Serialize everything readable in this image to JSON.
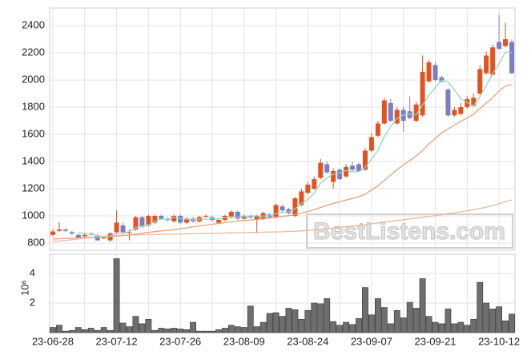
{
  "chart_data": [
    {
      "type": "candlestick",
      "up_color": "#e2531f",
      "down_color": "#7a7fc2",
      "ylim": [
        747,
        2530
      ],
      "yticks": [
        800,
        1000,
        1200,
        1400,
        1600,
        1800,
        2000,
        2200,
        2400
      ],
      "grid": true,
      "watermark": "BestListens.com",
      "open": [
        860,
        890,
        900,
        880,
        860,
        850,
        865,
        855,
        835,
        820,
        880,
        930,
        875,
        900,
        990,
        930,
        950,
        1000,
        975,
        960,
        1000,
        950,
        980,
        960,
        995,
        990,
        950,
        970,
        990,
        1030,
        980,
        1000,
        970,
        980,
        1010,
        990,
        1070,
        1050,
        1000,
        1080,
        1170,
        1200,
        1280,
        1380,
        1250,
        1340,
        1290,
        1370,
        1380,
        1340,
        1480,
        1590,
        1680,
        1830,
        1680,
        1780,
        1770,
        1700,
        1740,
        1990,
        2110,
        2020,
        1930,
        1740,
        1750,
        1800,
        1810,
        1900,
        2050,
        2040,
        2280,
        2250,
        2280
      ],
      "high": [
        900,
        955,
        910,
        890,
        870,
        870,
        880,
        865,
        850,
        880,
        1040,
        950,
        900,
        1000,
        1000,
        1010,
        1010,
        1010,
        990,
        1010,
        1010,
        990,
        990,
        1000,
        1010,
        1000,
        980,
        1010,
        1040,
        1040,
        1010,
        1010,
        1010,
        1030,
        1020,
        1090,
        1080,
        1060,
        1140,
        1200,
        1250,
        1290,
        1420,
        1400,
        1350,
        1350,
        1380,
        1400,
        1390,
        1500,
        1610,
        1700,
        1870,
        1860,
        1800,
        1800,
        1880,
        1840,
        2180,
        2150,
        2130,
        2030,
        1940,
        1800,
        1830,
        1880,
        1900,
        2110,
        2210,
        2260,
        2480,
        2420,
        2300
      ],
      "low": [
        850,
        880,
        880,
        860,
        830,
        840,
        855,
        815,
        830,
        810,
        870,
        870,
        820,
        890,
        910,
        920,
        940,
        970,
        960,
        950,
        940,
        940,
        950,
        950,
        985,
        960,
        940,
        960,
        980,
        970,
        970,
        980,
        870,
        970,
        980,
        980,
        1030,
        1010,
        990,
        1070,
        1160,
        1190,
        1270,
        1310,
        1200,
        1260,
        1280,
        1330,
        1320,
        1330,
        1470,
        1580,
        1670,
        1690,
        1670,
        1620,
        1710,
        1690,
        1730,
        1980,
        1990,
        1980,
        1730,
        1730,
        1740,
        1790,
        1800,
        1890,
        2040,
        2030,
        2220,
        2240,
        2040
      ],
      "close": [
        885,
        900,
        890,
        870,
        840,
        860,
        870,
        820,
        840,
        870,
        950,
        880,
        880,
        990,
        920,
        1000,
        1000,
        980,
        970,
        1000,
        950,
        980,
        960,
        990,
        1000,
        970,
        970,
        1000,
        1030,
        980,
        1000,
        990,
        1000,
        1020,
        990,
        1080,
        1040,
        1020,
        1130,
        1180,
        1230,
        1270,
        1390,
        1320,
        1330,
        1270,
        1360,
        1340,
        1330,
        1480,
        1580,
        1680,
        1850,
        1700,
        1780,
        1700,
        1720,
        1820,
        2060,
        2130,
        2000,
        1990,
        1740,
        1780,
        1800,
        1860,
        1870,
        2080,
        2180,
        2240,
        2230,
        2300,
        2050
      ],
      "series": [
        {
          "color": "#e9bb9f",
          "values": [
            812,
            816,
            820,
            825,
            830,
            835,
            840,
            845,
            848,
            851,
            854,
            856,
            858,
            860,
            861,
            862,
            863,
            864,
            865,
            866,
            867,
            868,
            869,
            870,
            871,
            872,
            873,
            874,
            875,
            876,
            877,
            878,
            879,
            880,
            881,
            882,
            883,
            885,
            887,
            890,
            893,
            897,
            901,
            906,
            911,
            916,
            921,
            926,
            931,
            936,
            942,
            948,
            954,
            960,
            966,
            972,
            978,
            984,
            990,
            996,
            1002,
            1009,
            1016,
            1023,
            1030,
            1038,
            1046,
            1055,
            1064,
            1076,
            1090,
            1105,
            1118
          ]
        },
        {
          "color": "#e8a27c",
          "values": [
            830,
            832,
            834,
            836,
            838,
            840,
            842,
            844,
            846,
            848,
            852,
            856,
            860,
            866,
            872,
            878,
            884,
            890,
            894,
            898,
            905,
            912,
            920,
            926,
            932,
            938,
            944,
            950,
            956,
            962,
            966,
            970,
            974,
            978,
            984,
            990,
            996,
            1002,
            1010,
            1020,
            1032,
            1046,
            1062,
            1078,
            1092,
            1104,
            1116,
            1128,
            1140,
            1160,
            1190,
            1222,
            1260,
            1300,
            1340,
            1376,
            1408,
            1440,
            1480,
            1530,
            1570,
            1610,
            1640,
            1668,
            1696,
            1720,
            1750,
            1790,
            1830,
            1870,
            1920,
            1955,
            1965
          ]
        },
        {
          "color": "#8fd6c4",
          "values": [
            null,
            null,
            null,
            null,
            877,
            872,
            866,
            852,
            846,
            852,
            870,
            872,
            884,
            914,
            924,
            934,
            958,
            978,
            974,
            990,
            980,
            976,
            972,
            976,
            976,
            980,
            978,
            986,
            994,
            990,
            996,
            1000,
            1000,
            998,
            1000,
            1016,
            1026,
            1030,
            1052,
            1090,
            1120,
            1166,
            1240,
            1278,
            1308,
            1316,
            1334,
            1324,
            1326,
            1356,
            1418,
            1482,
            1584,
            1658,
            1718,
            1742,
            1750,
            1744,
            1816,
            1886,
            1946,
            2000,
            1984,
            1928,
            1862,
            1834,
            1810,
            1878,
            1958,
            2046,
            2120,
            2206,
            2200
          ]
        }
      ]
    },
    {
      "type": "bar",
      "color": "#6e6e6e",
      "ylabel": "10⁶",
      "ylim": [
        0,
        5.3
      ],
      "yticks": [
        2,
        4
      ],
      "grid": true,
      "categories": [
        "23-06-28",
        null,
        null,
        null,
        null,
        null,
        null,
        null,
        null,
        null,
        "23-07-12",
        null,
        null,
        null,
        null,
        null,
        null,
        null,
        null,
        null,
        "23-07-26",
        null,
        null,
        null,
        null,
        null,
        null,
        null,
        null,
        null,
        "23-08-09",
        null,
        null,
        null,
        null,
        null,
        null,
        null,
        null,
        null,
        "23-08-24",
        null,
        null,
        null,
        null,
        null,
        null,
        null,
        null,
        null,
        "23-09-07",
        null,
        null,
        null,
        null,
        null,
        null,
        null,
        null,
        null,
        "23-09-21",
        null,
        null,
        null,
        null,
        null,
        null,
        null,
        null,
        null,
        "23-10-12",
        null,
        null
      ],
      "values": [
        0.35,
        0.5,
        0.1,
        0.15,
        0.35,
        0.2,
        0.3,
        0.15,
        0.35,
        0.15,
        5.0,
        0.65,
        0.4,
        1.1,
        0.6,
        0.9,
        0.15,
        0.3,
        0.25,
        0.3,
        0.25,
        0.2,
        0.7,
        0.1,
        0.1,
        0.1,
        0.2,
        0.3,
        0.5,
        0.4,
        0.35,
        1.8,
        0.4,
        0.7,
        1.3,
        1.35,
        1.1,
        1.65,
        1.55,
        0.9,
        1.5,
        2.0,
        1.95,
        2.3,
        0.75,
        0.5,
        0.7,
        0.55,
        0.95,
        3.05,
        1.2,
        2.3,
        1.7,
        0.6,
        1.5,
        1.0,
        2.05,
        1.65,
        3.65,
        1.1,
        0.7,
        0.6,
        1.6,
        0.6,
        0.7,
        0.5,
        0.9,
        3.4,
        2.0,
        1.6,
        1.75,
        0.8,
        1.25
      ]
    }
  ]
}
